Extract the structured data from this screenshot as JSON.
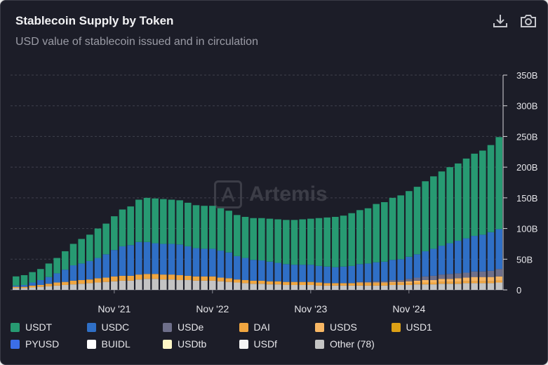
{
  "header": {
    "title": "Stablecoin Supply by Token",
    "subtitle": "USD value of stablecoin issued and in circulation"
  },
  "toolbar": {
    "download_icon": "download-icon",
    "camera_icon": "camera-icon"
  },
  "watermark": {
    "text": "Artemis"
  },
  "colors": {
    "background": "#1c1d28",
    "USDT": "#279a72",
    "USDC": "#2f6fc6",
    "USDe": "#6e6f8a",
    "DAI": "#f0a640",
    "USDS": "#f8b764",
    "USD1": "#dca015",
    "PYUSD": "#3b6ee8",
    "BUIDL": "#ffffff",
    "USDtb": "#fff7c6",
    "USDf": "#f4f4f4",
    "Other": "#c4c4c4"
  },
  "chart_data": {
    "type": "bar",
    "stacked": true,
    "title": "Stablecoin Supply by Token",
    "subtitle": "USD value of stablecoin issued and in circulation",
    "x_ticks": [
      "Nov '21",
      "Nov '22",
      "Nov '23",
      "Nov '24"
    ],
    "x_tick_bar_index": [
      12,
      24,
      36,
      48
    ],
    "y_ticks": [
      "0",
      "50B",
      "100B",
      "150B",
      "200B",
      "250B",
      "300B",
      "350B"
    ],
    "y_tick_values": [
      0,
      50,
      100,
      150,
      200,
      250,
      300,
      350
    ],
    "ylim": [
      0,
      350
    ],
    "unit": "B USD",
    "legend": [
      "USDT",
      "USDC",
      "USDe",
      "DAI",
      "USDS",
      "USD1",
      "PYUSD",
      "BUIDL",
      "USDtb",
      "USDf",
      "Other (78)"
    ],
    "legend_keys": [
      "USDT",
      "USDC",
      "USDe",
      "DAI",
      "USDS",
      "USD1",
      "PYUSD",
      "BUIDL",
      "USDtb",
      "USDf",
      "Other"
    ],
    "series": [
      {
        "name": "Other",
        "values": [
          3,
          3,
          4,
          5,
          6,
          7,
          8,
          9,
          10,
          11,
          12,
          13,
          14,
          15,
          15,
          17,
          18,
          18,
          17,
          17,
          16,
          16,
          15,
          15,
          15,
          14,
          13,
          12,
          11,
          10,
          10,
          9,
          9,
          8,
          8,
          8,
          8,
          7,
          7,
          7,
          7,
          7,
          7,
          7,
          7,
          7,
          8,
          8,
          8,
          9,
          9,
          9,
          10,
          10,
          10,
          11,
          11,
          11,
          11,
          12
        ]
      },
      {
        "name": "DAI",
        "values": [
          2,
          2,
          3,
          3,
          4,
          5,
          5,
          6,
          6,
          6,
          7,
          7,
          8,
          8,
          8,
          8,
          8,
          8,
          8,
          8,
          8,
          7,
          7,
          7,
          7,
          6,
          6,
          5,
          5,
          5,
          5,
          5,
          5,
          5,
          5,
          5,
          5,
          5,
          4,
          4,
          4,
          4,
          4,
          4,
          4,
          4,
          3,
          3,
          3,
          3,
          3,
          3,
          3,
          3,
          3,
          3,
          3,
          3,
          3,
          3
        ]
      },
      {
        "name": "USDS",
        "values": [
          0,
          0,
          0,
          0,
          0,
          0,
          0,
          0,
          0,
          0,
          0,
          0,
          0,
          0,
          0,
          0,
          0,
          0,
          0,
          0,
          0,
          0,
          0,
          0,
          0,
          0,
          0,
          0,
          0,
          0,
          0,
          0,
          0,
          0,
          0,
          0,
          0,
          0,
          0,
          0,
          0,
          0,
          1,
          1,
          1,
          1,
          2,
          2,
          3,
          3,
          4,
          4,
          5,
          5,
          6,
          6,
          7,
          7,
          7,
          7
        ]
      },
      {
        "name": "USDe",
        "values": [
          0,
          0,
          0,
          0,
          0,
          0,
          0,
          0,
          0,
          0,
          0,
          0,
          0,
          0,
          0,
          0,
          0,
          0,
          0,
          0,
          0,
          0,
          0,
          0,
          0,
          0,
          0,
          0,
          0,
          0,
          0,
          0,
          0,
          0,
          0,
          0,
          0,
          0,
          0,
          0,
          0,
          0,
          1,
          1,
          2,
          2,
          3,
          3,
          4,
          5,
          6,
          7,
          7,
          8,
          8,
          8,
          9,
          9,
          10,
          12
        ]
      },
      {
        "name": "USDC",
        "values": [
          2,
          3,
          5,
          8,
          11,
          15,
          20,
          25,
          27,
          30,
          33,
          38,
          43,
          48,
          50,
          53,
          52,
          50,
          50,
          50,
          50,
          48,
          46,
          45,
          45,
          44,
          42,
          38,
          36,
          34,
          33,
          32,
          30,
          29,
          28,
          28,
          28,
          27,
          27,
          26,
          27,
          28,
          29,
          30,
          31,
          32,
          33,
          34,
          36,
          38,
          41,
          44,
          47,
          50,
          53,
          56,
          58,
          60,
          63,
          65
        ]
      },
      {
        "name": "USDT",
        "values": [
          15,
          16,
          17,
          18,
          22,
          25,
          30,
          35,
          40,
          43,
          48,
          50,
          55,
          60,
          63,
          69,
          72,
          73,
          73,
          72,
          72,
          71,
          70,
          70,
          70,
          69,
          68,
          67,
          67,
          68,
          69,
          70,
          71,
          72,
          73,
          74,
          75,
          78,
          80,
          82,
          83,
          86,
          88,
          90,
          95,
          97,
          101,
          104,
          107,
          110,
          114,
          118,
          121,
          124,
          126,
          130,
          134,
          137,
          142,
          150
        ]
      }
    ]
  },
  "legend_items": [
    {
      "key": "USDT",
      "label": "USDT"
    },
    {
      "key": "USDC",
      "label": "USDC"
    },
    {
      "key": "USDe",
      "label": "USDe"
    },
    {
      "key": "DAI",
      "label": "DAI"
    },
    {
      "key": "USDS",
      "label": "USDS"
    },
    {
      "key": "USD1",
      "label": "USD1"
    },
    {
      "key": "PYUSD",
      "label": "PYUSD"
    },
    {
      "key": "BUIDL",
      "label": "BUIDL"
    },
    {
      "key": "USDtb",
      "label": "USDtb"
    },
    {
      "key": "USDf",
      "label": "USDf"
    },
    {
      "key": "Other",
      "label": "Other (78)"
    }
  ]
}
